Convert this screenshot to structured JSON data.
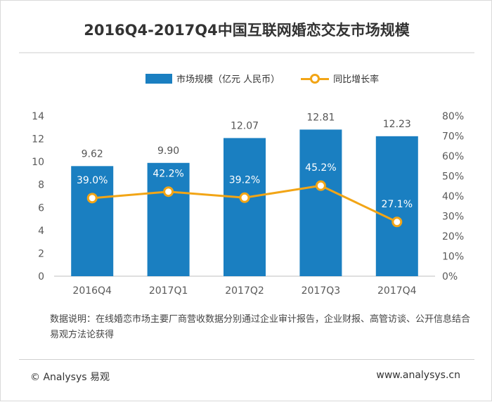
{
  "title": "2016Q4-2017Q4中国互联网婚恋交友市场规模",
  "legend": {
    "bar_label": "市场规模（亿元 人民币）",
    "line_label": "同比增长率"
  },
  "colors": {
    "bar": "#1a7fc1",
    "line": "#f2a516",
    "bar_label_text": "#555555",
    "line_label_text": "#ffffff"
  },
  "chart_data": {
    "type": "bar",
    "title": "2016Q4-2017Q4中国互联网婚恋交友市场规模",
    "categories": [
      "2016Q4",
      "2017Q1",
      "2017Q2",
      "2017Q3",
      "2017Q4"
    ],
    "series": [
      {
        "name": "市场规模（亿元 人民币）",
        "type": "bar",
        "axis": "left",
        "values": [
          9.62,
          9.9,
          12.07,
          12.81,
          12.23
        ],
        "labels": [
          "9.62",
          "9.90",
          "12.07",
          "12.81",
          "12.23"
        ]
      },
      {
        "name": "同比增长率",
        "type": "line",
        "axis": "right",
        "values": [
          39.0,
          42.2,
          39.2,
          45.2,
          27.1
        ],
        "labels": [
          "39.0%",
          "42.2%",
          "39.2%",
          "45.2%",
          "27.1%"
        ]
      }
    ],
    "y_left": {
      "min": 0,
      "max": 14,
      "ticks": [
        "0",
        "2",
        "4",
        "6",
        "8",
        "10",
        "12",
        "14"
      ]
    },
    "y_right": {
      "min": 0,
      "max": 80,
      "ticks": [
        "0%",
        "10%",
        "20%",
        "30%",
        "40%",
        "50%",
        "60%",
        "70%",
        "80%"
      ]
    },
    "grid": false,
    "legend_position": "top"
  },
  "note": "数据说明：在线婚恋市场主要厂商营收数据分别通过企业审计报告，企业财报、高管访谈、公开信息结合易观方法论获得",
  "footer": {
    "copyright": "© Analysys 易观",
    "url": "www.analysys.cn"
  }
}
